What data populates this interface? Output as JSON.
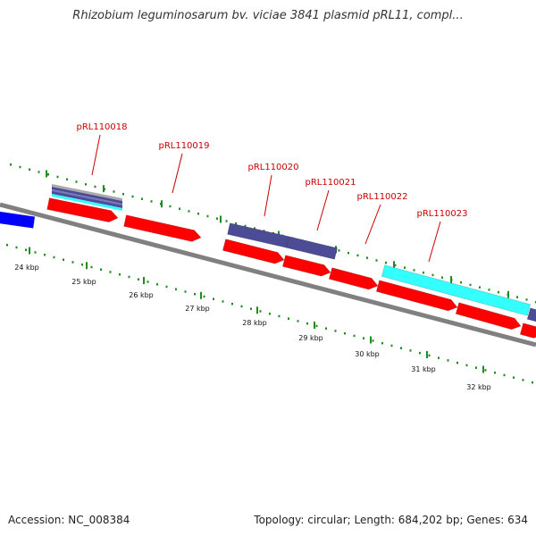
{
  "header": {
    "title": "Rhizobium leguminosarum bv. viciae 3841 plasmid pRL11, compl..."
  },
  "footer": {
    "accession_text": "Accession: NC_008384",
    "stats_text": "Topology: circular; Length: 684,202 bp; Genes: 634"
  },
  "colors": {
    "backbone": "#808080",
    "cds_forward": "#ff0000",
    "feature_dark": "#4b4b96",
    "feature_cyan": "#33ffff",
    "feature_blue": "#0000ff",
    "tick": "#228b22",
    "gene_label": "#cc0000"
  },
  "genes": [
    {
      "name": "pRL110018"
    },
    {
      "name": "pRL110019"
    },
    {
      "name": "pRL110020"
    },
    {
      "name": "pRL110021"
    },
    {
      "name": "pRL110022"
    },
    {
      "name": "pRL110023"
    }
  ],
  "scale_labels": [
    {
      "text": "24 kbp"
    },
    {
      "text": "25 kbp"
    },
    {
      "text": "26 kbp"
    },
    {
      "text": "27 kbp"
    },
    {
      "text": "28 kbp"
    },
    {
      "text": "29 kbp"
    },
    {
      "text": "30 kbp"
    },
    {
      "text": "31 kbp"
    },
    {
      "text": "32 kbp"
    }
  ],
  "features": [
    {
      "type": "cds",
      "strand": "forward",
      "shape": "arrow",
      "color_key": "cds_forward"
    },
    {
      "type": "cds",
      "strand": "forward",
      "shape": "arrow",
      "color_key": "cds_forward"
    },
    {
      "type": "cds",
      "strand": "forward",
      "shape": "arrow",
      "color_key": "cds_forward"
    },
    {
      "type": "cds",
      "strand": "forward",
      "shape": "arrow",
      "color_key": "cds_forward"
    },
    {
      "type": "cds",
      "strand": "forward",
      "shape": "arrow",
      "color_key": "cds_forward"
    },
    {
      "type": "cds",
      "strand": "forward",
      "shape": "arrow",
      "color_key": "cds_forward"
    },
    {
      "type": "cds",
      "strand": "forward",
      "shape": "arrow",
      "color_key": "cds_forward"
    },
    {
      "type": "cds",
      "strand": "forward",
      "shape": "arrow",
      "color_key": "cds_forward"
    },
    {
      "type": "feature",
      "strand": "forward",
      "shape": "bar",
      "color_key": "feature_dark"
    },
    {
      "type": "feature",
      "strand": "forward",
      "shape": "bar",
      "color_key": "feature_dark"
    },
    {
      "type": "feature",
      "strand": "forward",
      "shape": "bar",
      "color_key": "feature_cyan"
    },
    {
      "type": "feature",
      "strand": "forward",
      "shape": "bar",
      "color_key": "feature_dark"
    },
    {
      "type": "feature",
      "strand": "forward",
      "shape": "bar",
      "color_key": "feature_blue"
    }
  ]
}
